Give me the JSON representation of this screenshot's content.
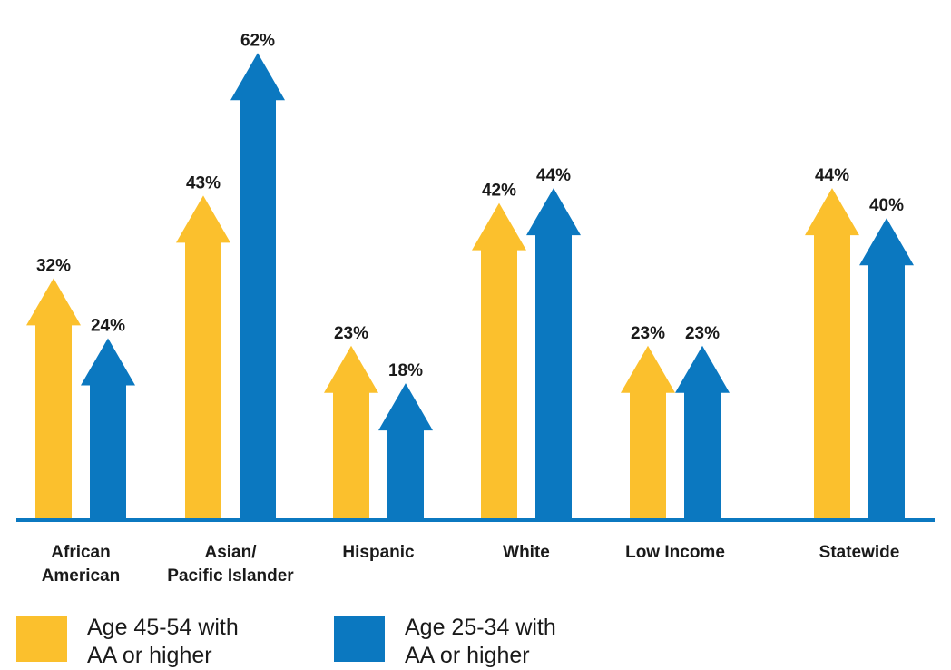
{
  "chart_data": {
    "type": "bar",
    "categories": [
      [
        "African",
        "American"
      ],
      [
        "Asian/",
        "Pacific Islander"
      ],
      [
        "Hispanic"
      ],
      [
        "White"
      ],
      [
        "Low Income"
      ],
      [
        "Statewide"
      ]
    ],
    "series": [
      {
        "name": "Age 45-54 with AA or higher",
        "color": "#FBC02D",
        "values": [
          32,
          43,
          23,
          42,
          23,
          44
        ]
      },
      {
        "name": "Age 25-34 with AA or higher",
        "color": "#0B78C0",
        "values": [
          24,
          62,
          18,
          44,
          23,
          40
        ]
      }
    ],
    "value_suffix": "%",
    "ylim": [
      0,
      66
    ],
    "grid": false,
    "axis_color": "#0B78C0",
    "legend_position": "bottom-left"
  },
  "legend": [
    {
      "lines": [
        "Age 45-54 with",
        "AA or higher"
      ],
      "color": "#FBC02D"
    },
    {
      "lines": [
        "Age 25-34 with",
        "AA or higher"
      ],
      "color": "#0B78C0"
    }
  ]
}
